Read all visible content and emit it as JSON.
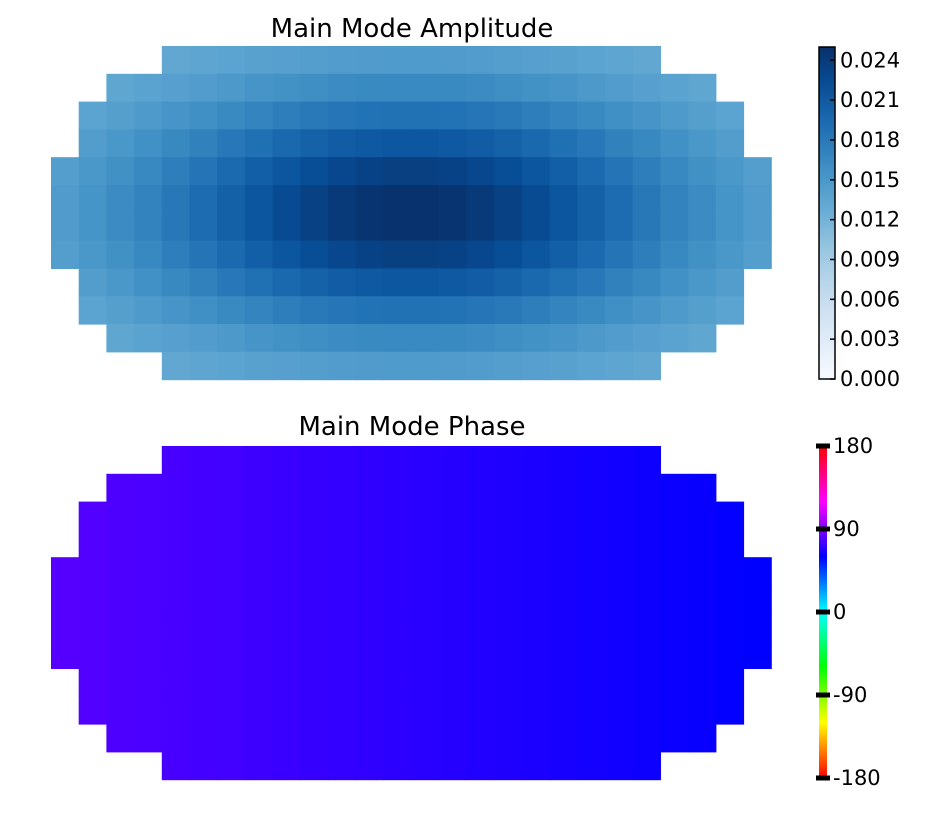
{
  "chart_data": [
    {
      "type": "heatmap",
      "title": "Main Mode Amplitude",
      "grid_shape": [
        12,
        26
      ],
      "row_ranges": [
        [
          4,
          21
        ],
        [
          2,
          23
        ],
        [
          1,
          24
        ],
        [
          1,
          24
        ],
        [
          0,
          25
        ],
        [
          0,
          25
        ],
        [
          0,
          25
        ],
        [
          0,
          25
        ],
        [
          1,
          24
        ],
        [
          1,
          24
        ],
        [
          2,
          23
        ],
        [
          4,
          21
        ]
      ],
      "value_model": "gaussian_bump",
      "peak_value": 0.025,
      "edge_value": 0.012,
      "peak_position": "center",
      "colormap": "Blues",
      "colorbar": {
        "range": [
          0.0,
          0.025
        ],
        "ticks": [
          "0.000",
          "0.003",
          "0.006",
          "0.009",
          "0.012",
          "0.015",
          "0.018",
          "0.021",
          "0.024"
        ],
        "placement": "right"
      },
      "axes_visible": false
    },
    {
      "type": "heatmap",
      "title": "Main Mode Phase",
      "grid_shape": [
        12,
        26
      ],
      "row_ranges": [
        [
          4,
          21
        ],
        [
          2,
          23
        ],
        [
          1,
          24
        ],
        [
          1,
          24
        ],
        [
          0,
          25
        ],
        [
          0,
          25
        ],
        [
          0,
          25
        ],
        [
          0,
          25
        ],
        [
          1,
          24
        ],
        [
          1,
          24
        ],
        [
          2,
          23
        ],
        [
          4,
          21
        ]
      ],
      "value_model": "linear_in_x",
      "value_left": 80,
      "value_right": 60,
      "colormap": "hsv",
      "colorbar": {
        "range": [
          -180,
          180
        ],
        "ticks": [
          "-180",
          "-90",
          "0",
          "90",
          "180"
        ],
        "placement": "right"
      },
      "axes_visible": false
    }
  ]
}
